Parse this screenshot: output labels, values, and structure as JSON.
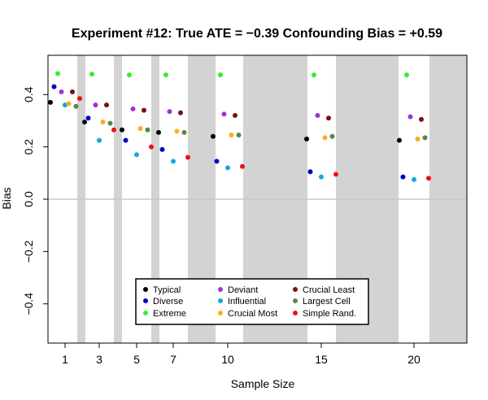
{
  "chart_data": {
    "type": "scatter",
    "title": "Experiment #12:  True ATE = −0.39   Confounding Bias = +0.59",
    "xlabel": "Sample Size",
    "ylabel": "Bias",
    "ylim": [
      -0.55,
      0.55
    ],
    "yticks": [
      {
        "value": -0.4,
        "label": "−0.4"
      },
      {
        "value": -0.2,
        "label": "−0.2"
      },
      {
        "value": 0.0,
        "label": "0.0"
      },
      {
        "value": 0.2,
        "label": "0.2"
      },
      {
        "value": 0.4,
        "label": "0.4"
      }
    ],
    "categories": [
      "1",
      "3",
      "5",
      "7",
      "10",
      "15",
      "20"
    ],
    "reference_line_y": 0,
    "legend_position": "bottom-center",
    "series": [
      {
        "name": "Typical",
        "color": "#000000",
        "values": [
          0.37,
          0.295,
          0.265,
          0.255,
          0.24,
          0.23,
          0.225
        ]
      },
      {
        "name": "Diverse",
        "color": "#0000cc",
        "values": [
          0.43,
          0.31,
          0.225,
          0.19,
          0.145,
          0.105,
          0.085
        ]
      },
      {
        "name": "Extreme",
        "color": "#33ee33",
        "values": [
          0.48,
          0.478,
          0.475,
          0.475,
          0.475,
          0.475,
          0.475
        ]
      },
      {
        "name": "Deviant",
        "color": "#9933dd",
        "values": [
          0.41,
          0.36,
          0.345,
          0.335,
          0.325,
          0.32,
          0.315
        ]
      },
      {
        "name": "Influential",
        "color": "#11aadd",
        "values": [
          0.36,
          0.225,
          0.17,
          0.145,
          0.12,
          0.085,
          0.075
        ]
      },
      {
        "name": "Crucial Most",
        "color": "#ffaa22",
        "values": [
          0.365,
          0.295,
          0.27,
          0.26,
          0.245,
          0.235,
          0.23
        ]
      },
      {
        "name": "Crucial Least",
        "color": "#7a1010",
        "values": [
          0.41,
          0.36,
          0.34,
          0.33,
          0.32,
          0.31,
          0.305
        ]
      },
      {
        "name": "Largest Cell",
        "color": "#558844",
        "values": [
          0.355,
          0.29,
          0.265,
          0.255,
          0.245,
          0.24,
          0.235
        ]
      },
      {
        "name": "Simple Rand.",
        "color": "#ee1111",
        "values": [
          0.385,
          0.265,
          0.2,
          0.16,
          0.125,
          0.095,
          0.08
        ]
      }
    ]
  }
}
